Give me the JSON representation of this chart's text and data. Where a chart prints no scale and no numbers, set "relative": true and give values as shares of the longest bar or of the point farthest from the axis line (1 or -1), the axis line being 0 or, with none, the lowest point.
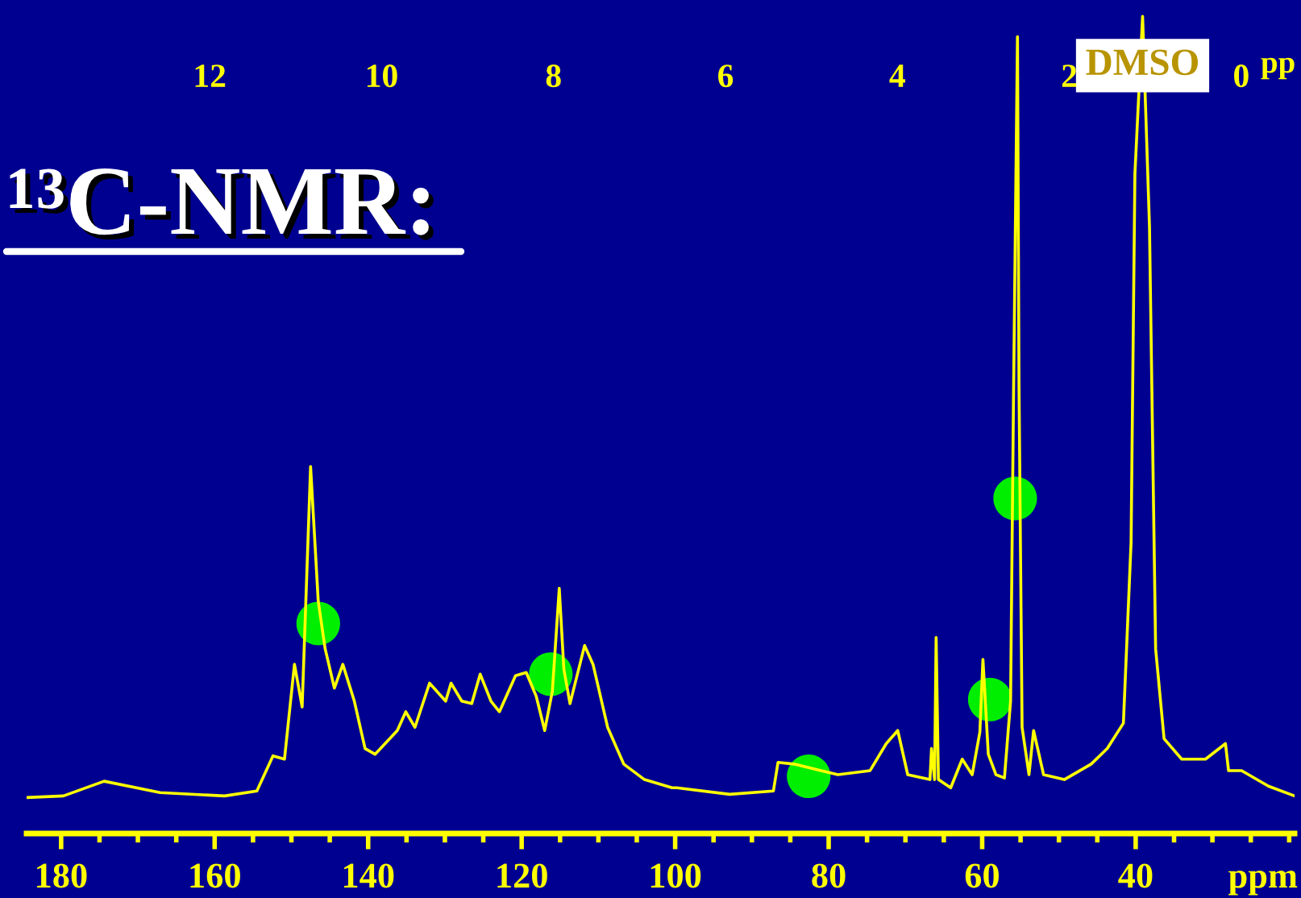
{
  "chart_data": {
    "type": "line",
    "title": "¹³C-NMR:",
    "xlabel": "ppm",
    "x2label": "pp",
    "relative": true,
    "grid": false,
    "legend": false,
    "tick_labels": "x",
    "xlim": [
      184.5,
      19.3
    ],
    "xticks": [
      180,
      160,
      140,
      120,
      100,
      80,
      60,
      40,
      {
        "value": 175,
        "label": null
      },
      {
        "value": 170,
        "label": null
      },
      {
        "value": 165,
        "label": null
      },
      {
        "value": 155,
        "label": null
      },
      {
        "value": 150,
        "label": null
      },
      {
        "value": 145,
        "label": null
      },
      {
        "value": 135,
        "label": null
      },
      {
        "value": 130,
        "label": null
      },
      {
        "value": 125,
        "label": null
      },
      {
        "value": 115,
        "label": null
      },
      {
        "value": 110,
        "label": null
      },
      {
        "value": 105,
        "label": null
      },
      {
        "value": 95,
        "label": null
      },
      {
        "value": 90,
        "label": null
      },
      {
        "value": 85,
        "label": null
      },
      {
        "value": 75,
        "label": null
      },
      {
        "value": 70,
        "label": null
      },
      {
        "value": 65,
        "label": null
      },
      {
        "value": 55,
        "label": null
      },
      {
        "value": 50,
        "label": null
      },
      {
        "value": 45,
        "label": null
      },
      {
        "value": 35,
        "label": null
      },
      {
        "value": 30,
        "label": null
      },
      {
        "value": 25,
        "label": null
      },
      {
        "value": 20,
        "label": null
      }
    ],
    "x2lim": [
      14.13,
      -0.62
    ],
    "x2ticks": [
      12,
      10,
      8,
      6,
      4,
      2,
      0
    ],
    "series": [
      {
        "color": "#ffff00",
        "line_style": "solid",
        "marker": "none",
        "x": [
          184.5,
          179.7,
          174.4,
          167.1,
          158.7,
          154.5,
          152.4,
          150.9,
          149.6,
          148.6,
          147.5,
          146.5,
          145.6,
          144.4,
          143.3,
          141.8,
          140.4,
          139.1,
          136.2,
          135.1,
          133.9,
          132.0,
          129.9,
          129.2,
          127.8,
          126.5,
          125.4,
          124.0,
          122.9,
          120.8,
          119.4,
          118.1,
          117.0,
          116.0,
          115.1,
          114.5,
          113.7,
          111.8,
          110.7,
          108.8,
          106.7,
          104.0,
          100.4,
          99.8,
          92.9,
          87.2,
          86.6,
          84.5,
          78.8,
          74.6,
          72.5,
          71.0,
          69.7,
          66.8,
          66.6,
          66.2,
          66.0,
          65.7,
          64.1,
          62.6,
          61.3,
          60.3,
          59.9,
          59.2,
          58.2,
          57.1,
          56.3,
          55.9,
          55.4,
          55.2,
          54.8,
          53.9,
          53.3,
          52.0,
          49.3,
          45.8,
          43.7,
          41.6,
          40.6,
          40.1,
          39.1,
          38.2,
          37.4,
          36.3,
          34.0,
          30.9,
          28.3,
          27.9,
          26.2,
          22.7,
          19.3
        ],
        "values": [
          0.044,
          0.046,
          0.064,
          0.05,
          0.046,
          0.052,
          0.095,
          0.091,
          0.207,
          0.155,
          0.449,
          0.284,
          0.226,
          0.178,
          0.207,
          0.162,
          0.104,
          0.097,
          0.126,
          0.149,
          0.13,
          0.184,
          0.162,
          0.184,
          0.162,
          0.159,
          0.195,
          0.162,
          0.149,
          0.193,
          0.197,
          0.168,
          0.126,
          0.174,
          0.3,
          0.201,
          0.159,
          0.23,
          0.207,
          0.13,
          0.085,
          0.066,
          0.056,
          0.056,
          0.048,
          0.052,
          0.087,
          0.085,
          0.072,
          0.077,
          0.11,
          0.126,
          0.072,
          0.066,
          0.104,
          0.066,
          0.24,
          0.066,
          0.056,
          0.091,
          0.072,
          0.124,
          0.213,
          0.097,
          0.072,
          0.068,
          0.162,
          0.549,
          0.975,
          0.549,
          0.13,
          0.072,
          0.126,
          0.072,
          0.066,
          0.085,
          0.104,
          0.135,
          0.356,
          0.807,
          1.0,
          0.743,
          0.226,
          0.116,
          0.091,
          0.091,
          0.11,
          0.077,
          0.077,
          0.058,
          0.046
        ]
      },
      {
        "type": "scatter",
        "color": "#00ee00",
        "marker": "circle",
        "x": [
          146.5,
          116.2,
          82.6,
          59.0,
          55.7
        ],
        "values": [
          0.257,
          0.195,
          0.07,
          0.164,
          0.41
        ]
      }
    ],
    "annotations": [
      {
        "text": "DMSO",
        "x": 39.1,
        "y": 1.0
      }
    ]
  }
}
